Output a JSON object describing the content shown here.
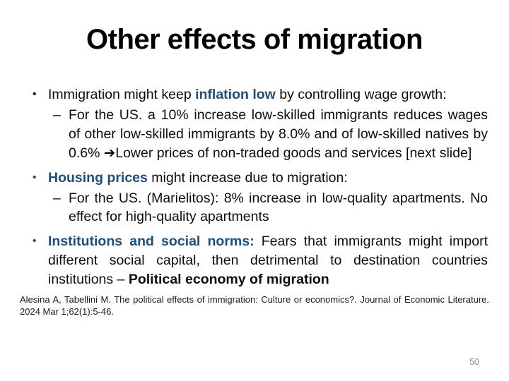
{
  "slide": {
    "title": "Other effects of migration",
    "bullets": [
      {
        "glyph": "•",
        "segments": [
          {
            "text": "Immigration might keep "
          },
          {
            "text": "inflation low"
          },
          {
            "text": " by controlling wage growth:"
          }
        ]
      },
      {
        "glyph": "–",
        "segments": [
          {
            "text": "For the US. a 10% increase low-skilled immigrants reduces wages of other low-skilled immigrants by 8.0% and of low-skilled natives by 0.6% "
          },
          {
            "text": "➔"
          },
          {
            "text": "Lower prices of non-traded goods and services [next slide]"
          }
        ]
      },
      {
        "glyph": "•",
        "segments": [
          {
            "text": "Housing prices"
          },
          {
            "text": " might increase due to migration:"
          }
        ]
      },
      {
        "glyph": "–",
        "segments": [
          {
            "text": "For the US. (Marielitos): 8% increase in low-quality apartments. No effect for high-quality apartments"
          }
        ]
      },
      {
        "glyph": "•",
        "segments": [
          {
            "text": "Institutions and social norms:"
          },
          {
            "text": " Fears that immigrants might import different social capital, then detrimental to destination countries institutions – "
          },
          {
            "text": "Political economy of migration"
          }
        ]
      }
    ],
    "citation": "Alesina A, Tabellini M. The political effects of immigration: Culture or economics?. Journal of Economic Literature. 2024 Mar 1;62(1):5-46.",
    "page_number": "50",
    "colors": {
      "accent_blue": "#1f4e79",
      "text_black": "#0d0d0d",
      "page_number_gray": "#8c8c8c",
      "background": "#ffffff"
    }
  }
}
